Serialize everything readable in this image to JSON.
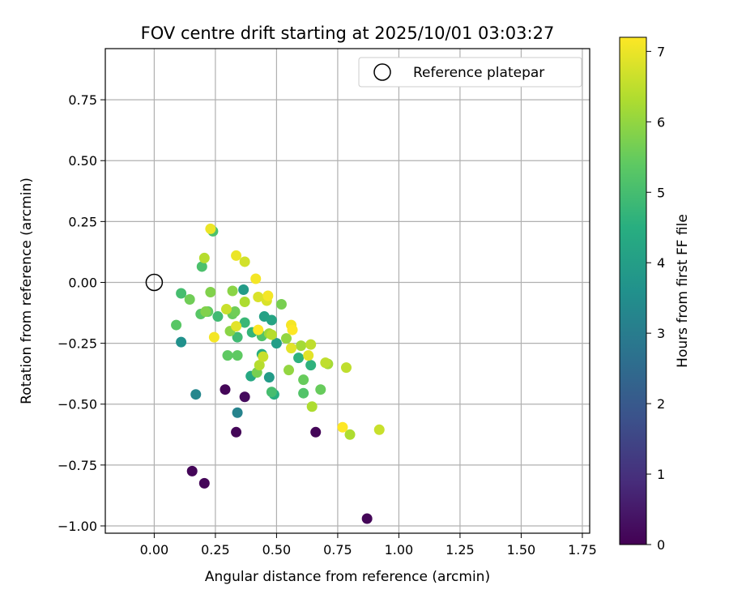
{
  "chart_data": {
    "type": "scatter",
    "title": "FOV centre drift starting at 2025/10/01 03:03:27",
    "xlabel": "Angular distance from reference (arcmin)",
    "ylabel": "Rotation from reference (arcmin)",
    "xlim": [
      -0.2,
      1.78
    ],
    "ylim": [
      -1.03,
      0.96
    ],
    "grid": true,
    "xticks": [
      0.0,
      0.25,
      0.5,
      0.75,
      1.0,
      1.25,
      1.5,
      1.75
    ],
    "xtick_labels": [
      "0.00",
      "0.25",
      "0.50",
      "0.75",
      "1.00",
      "1.25",
      "1.50",
      "1.75"
    ],
    "yticks": [
      0.75,
      0.5,
      0.25,
      0.0,
      -0.25,
      -0.5,
      -0.75,
      -1.0
    ],
    "ytick_labels": [
      "0.75",
      "0.50",
      "0.25",
      "0.00",
      "−0.25",
      "−0.50",
      "−0.75",
      "−1.00"
    ],
    "legend": {
      "position": "top-right",
      "entries": [
        {
          "label": "Reference platepar",
          "marker": "open-circle"
        }
      ]
    },
    "reference_point": {
      "x": 0.0,
      "y": 0.0
    },
    "colorbar": {
      "label": "Hours from first FF file",
      "colormap": "viridis",
      "range": [
        0,
        7.2
      ],
      "ticks": [
        0,
        1,
        2,
        3,
        4,
        5,
        6,
        7
      ],
      "tick_labels": [
        "0",
        "1",
        "2",
        "3",
        "4",
        "5",
        "6",
        "7"
      ]
    },
    "points": [
      {
        "x": 0.87,
        "y": -0.97,
        "h": 0.1
      },
      {
        "x": 0.205,
        "y": -0.825,
        "h": 0.1
      },
      {
        "x": 0.155,
        "y": -0.775,
        "h": 0.1
      },
      {
        "x": 0.335,
        "y": -0.615,
        "h": 0.1
      },
      {
        "x": 0.66,
        "y": -0.615,
        "h": 0.1
      },
      {
        "x": 0.29,
        "y": -0.44,
        "h": 0.1
      },
      {
        "x": 0.37,
        "y": -0.47,
        "h": 0.2
      },
      {
        "x": 0.34,
        "y": -0.535,
        "h": 3.2
      },
      {
        "x": 0.17,
        "y": -0.46,
        "h": 3.3
      },
      {
        "x": 0.11,
        "y": -0.245,
        "h": 3.6
      },
      {
        "x": 0.365,
        "y": -0.03,
        "h": 3.9
      },
      {
        "x": 0.47,
        "y": -0.39,
        "h": 3.9
      },
      {
        "x": 0.5,
        "y": -0.25,
        "h": 4.0
      },
      {
        "x": 0.45,
        "y": -0.14,
        "h": 4.1
      },
      {
        "x": 0.48,
        "y": -0.155,
        "h": 4.2
      },
      {
        "x": 0.395,
        "y": -0.385,
        "h": 4.3
      },
      {
        "x": 0.44,
        "y": -0.295,
        "h": 4.4
      },
      {
        "x": 0.49,
        "y": -0.46,
        "h": 4.5
      },
      {
        "x": 0.59,
        "y": -0.31,
        "h": 4.6
      },
      {
        "x": 0.64,
        "y": -0.34,
        "h": 4.6
      },
      {
        "x": 0.4,
        "y": -0.205,
        "h": 4.7
      },
      {
        "x": 0.37,
        "y": -0.165,
        "h": 4.8
      },
      {
        "x": 0.26,
        "y": -0.14,
        "h": 4.9
      },
      {
        "x": 0.34,
        "y": -0.225,
        "h": 4.9
      },
      {
        "x": 0.48,
        "y": -0.45,
        "h": 5.0
      },
      {
        "x": 0.11,
        "y": -0.045,
        "h": 5.0
      },
      {
        "x": 0.24,
        "y": 0.21,
        "h": 5.1
      },
      {
        "x": 0.195,
        "y": 0.065,
        "h": 5.1
      },
      {
        "x": 0.44,
        "y": -0.22,
        "h": 5.2
      },
      {
        "x": 0.61,
        "y": -0.455,
        "h": 5.2
      },
      {
        "x": 0.09,
        "y": -0.175,
        "h": 5.3
      },
      {
        "x": 0.19,
        "y": -0.13,
        "h": 5.3
      },
      {
        "x": 0.22,
        "y": -0.12,
        "h": 5.4
      },
      {
        "x": 0.3,
        "y": -0.3,
        "h": 5.4
      },
      {
        "x": 0.34,
        "y": -0.3,
        "h": 5.4
      },
      {
        "x": 0.32,
        "y": -0.13,
        "h": 5.5
      },
      {
        "x": 0.61,
        "y": -0.4,
        "h": 5.5
      },
      {
        "x": 0.68,
        "y": -0.44,
        "h": 5.5
      },
      {
        "x": 0.145,
        "y": -0.07,
        "h": 5.6
      },
      {
        "x": 0.33,
        "y": -0.12,
        "h": 5.6
      },
      {
        "x": 0.42,
        "y": -0.37,
        "h": 5.7
      },
      {
        "x": 0.52,
        "y": -0.09,
        "h": 5.7
      },
      {
        "x": 0.23,
        "y": -0.04,
        "h": 5.8
      },
      {
        "x": 0.21,
        "y": -0.12,
        "h": 5.8
      },
      {
        "x": 0.31,
        "y": -0.2,
        "h": 5.9
      },
      {
        "x": 0.32,
        "y": -0.035,
        "h": 5.9
      },
      {
        "x": 0.54,
        "y": -0.23,
        "h": 6.0
      },
      {
        "x": 0.55,
        "y": -0.36,
        "h": 6.0
      },
      {
        "x": 0.47,
        "y": -0.21,
        "h": 6.1
      },
      {
        "x": 0.6,
        "y": -0.26,
        "h": 6.2
      },
      {
        "x": 0.71,
        "y": -0.335,
        "h": 6.2
      },
      {
        "x": 0.645,
        "y": -0.51,
        "h": 6.3
      },
      {
        "x": 0.8,
        "y": -0.625,
        "h": 6.3
      },
      {
        "x": 0.37,
        "y": -0.08,
        "h": 6.3
      },
      {
        "x": 0.205,
        "y": 0.1,
        "h": 6.4
      },
      {
        "x": 0.43,
        "y": -0.34,
        "h": 6.4
      },
      {
        "x": 0.48,
        "y": -0.215,
        "h": 6.4
      },
      {
        "x": 0.7,
        "y": -0.33,
        "h": 6.5
      },
      {
        "x": 0.64,
        "y": -0.255,
        "h": 6.5
      },
      {
        "x": 0.785,
        "y": -0.35,
        "h": 6.5
      },
      {
        "x": 0.92,
        "y": -0.605,
        "h": 6.6
      },
      {
        "x": 0.445,
        "y": -0.305,
        "h": 6.6
      },
      {
        "x": 0.295,
        "y": -0.11,
        "h": 6.6
      },
      {
        "x": 0.37,
        "y": 0.085,
        "h": 6.7
      },
      {
        "x": 0.425,
        "y": -0.06,
        "h": 6.8
      },
      {
        "x": 0.46,
        "y": -0.075,
        "h": 6.8
      },
      {
        "x": 0.335,
        "y": -0.18,
        "h": 6.9
      },
      {
        "x": 0.56,
        "y": -0.27,
        "h": 6.9
      },
      {
        "x": 0.63,
        "y": -0.3,
        "h": 6.9
      },
      {
        "x": 0.335,
        "y": 0.11,
        "h": 7.0
      },
      {
        "x": 0.23,
        "y": 0.22,
        "h": 7.0
      },
      {
        "x": 0.415,
        "y": 0.015,
        "h": 7.1
      },
      {
        "x": 0.245,
        "y": -0.225,
        "h": 7.1
      },
      {
        "x": 0.465,
        "y": -0.055,
        "h": 7.1
      },
      {
        "x": 0.56,
        "y": -0.175,
        "h": 7.1
      },
      {
        "x": 0.77,
        "y": -0.595,
        "h": 7.2
      },
      {
        "x": 0.425,
        "y": -0.195,
        "h": 7.2
      },
      {
        "x": 0.565,
        "y": -0.195,
        "h": 7.2
      }
    ]
  }
}
